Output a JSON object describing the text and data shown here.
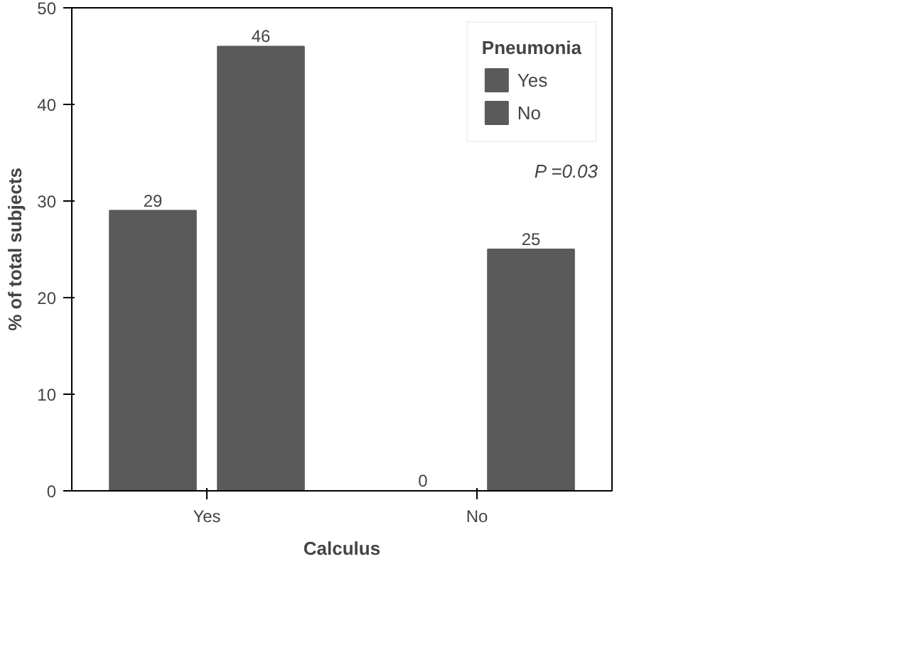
{
  "chart_data": {
    "type": "bar",
    "xlabel": "Calculus",
    "ylabel": "% of total subjects",
    "legend_title": "Pneumonia",
    "categories": [
      "Yes",
      "No"
    ],
    "series": [
      {
        "name": "Yes",
        "color": "#5a5a5a",
        "values": [
          29,
          0
        ]
      },
      {
        "name": "No",
        "color": "#5a5a5a",
        "values": [
          46,
          25
        ]
      }
    ],
    "ylim": [
      0,
      50
    ],
    "yticks": [
      0,
      10,
      20,
      30,
      40,
      50
    ],
    "grid": false,
    "legend": "right",
    "data_labels": true,
    "annotations": [
      "P =0.03"
    ]
  }
}
